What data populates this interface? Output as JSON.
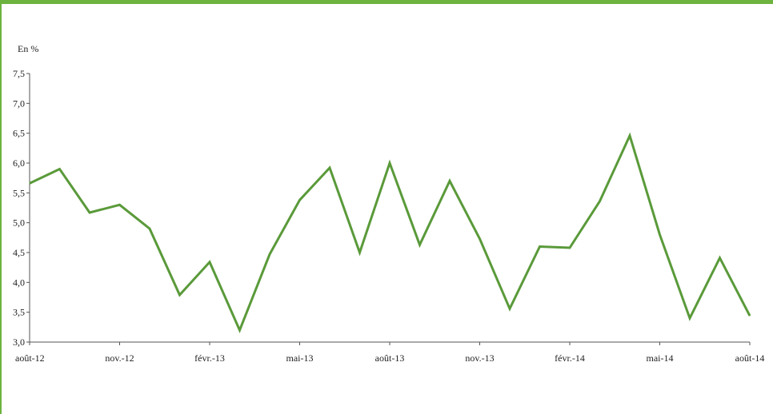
{
  "chart_data": {
    "type": "line",
    "ylabel": "En %",
    "ylim": [
      3.0,
      7.5
    ],
    "yticks": [
      "3,0",
      "3,5",
      "4,0",
      "4,5",
      "5,0",
      "5,5",
      "6,0",
      "6,5",
      "7,0",
      "7,5"
    ],
    "xtick_labels": [
      "août-12",
      "nov.-12",
      "févr.-13",
      "mai-13",
      "août-13",
      "nov.-13",
      "févr.-14",
      "mai-14",
      "août-14"
    ],
    "x": [
      "août-12",
      "sept.-12",
      "oct.-12",
      "nov.-12",
      "déc.-12",
      "janv.-13",
      "févr.-13",
      "mars-13",
      "avr.-13",
      "mai-13",
      "juin-13",
      "juil.-13",
      "août-13",
      "sept.-13",
      "oct.-13",
      "nov.-13",
      "déc.-13",
      "janv.-14",
      "févr.-14",
      "mars-14",
      "avr.-14",
      "mai-14",
      "juin-14",
      "juil.-14",
      "août-14"
    ],
    "series": [
      {
        "values": [
          5.66,
          5.9,
          5.17,
          5.3,
          4.9,
          3.79,
          4.34,
          3.2,
          4.47,
          5.38,
          5.92,
          4.5,
          6.0,
          4.63,
          5.7,
          4.73,
          3.56,
          4.6,
          4.58,
          5.36,
          6.46,
          4.8,
          3.4,
          4.41,
          3.44
        ]
      }
    ],
    "grid": false,
    "colors": {
      "line": "#5a9a3a",
      "frame": "#6db33f",
      "axis": "#555555"
    }
  }
}
